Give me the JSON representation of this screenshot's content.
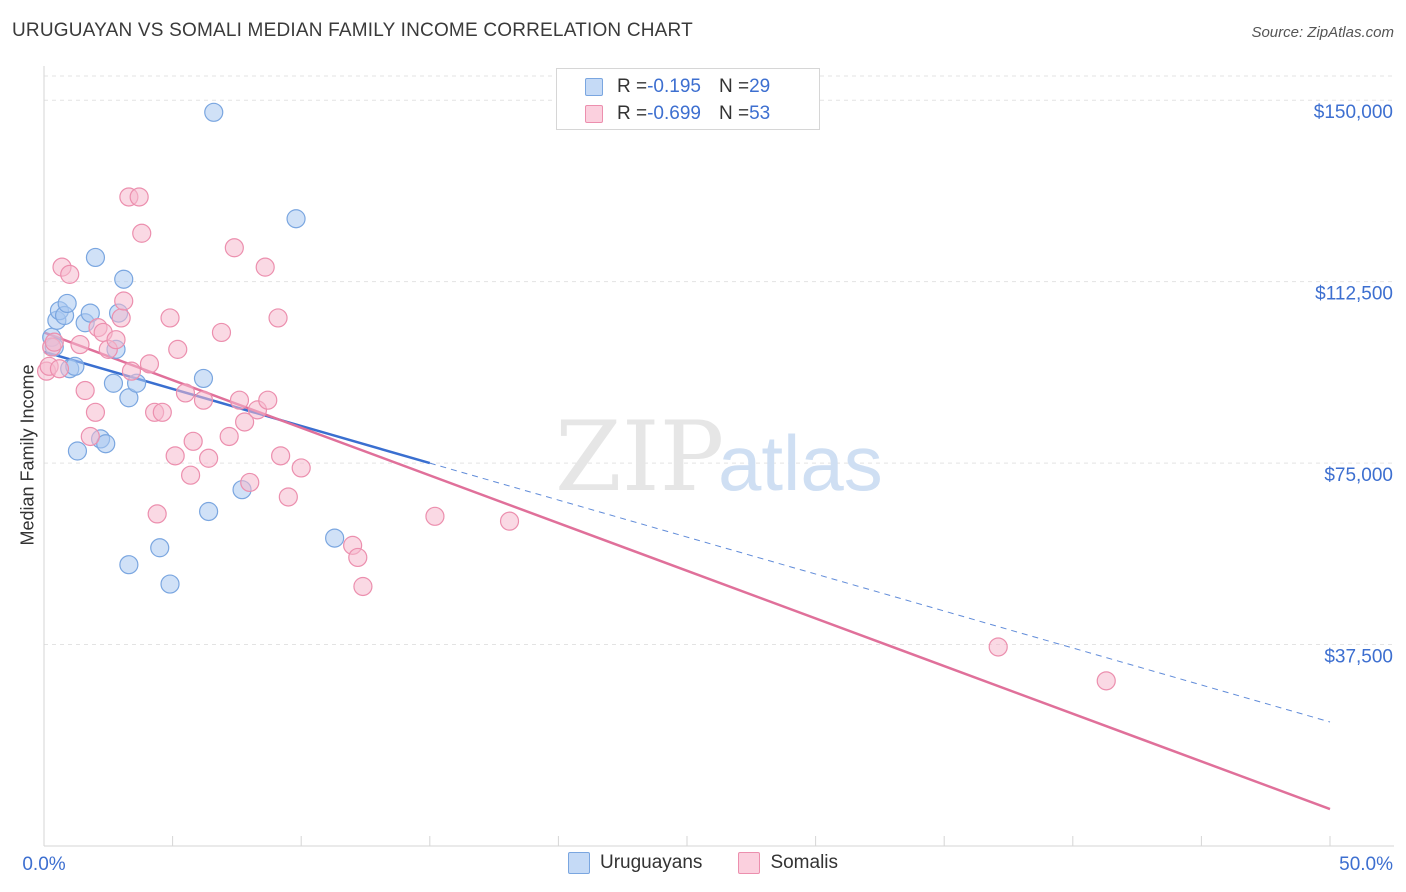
{
  "title": "URUGUAYAN VS SOMALI MEDIAN FAMILY INCOME CORRELATION CHART",
  "source": "Source: ZipAtlas.com",
  "watermark": {
    "part1": "ZIP",
    "part2": "atlas"
  },
  "legend": {
    "uruguayans": {
      "r_label": "R = ",
      "r_value": "-0.195",
      "n_label": "N = ",
      "n_value": "29"
    },
    "somalis": {
      "r_label": "R = ",
      "r_value": "-0.699",
      "n_label": "N = ",
      "n_value": "53"
    }
  },
  "colors": {
    "blue_fill": "#a9c8f0",
    "blue_stroke": "#7aa6e0",
    "blue_line": "#3a6fd0",
    "pink_fill": "#f6b9cd",
    "pink_stroke": "#ec8fae",
    "pink_line": "#e0709a",
    "tick_label": "#3d6fd0",
    "grid": "#e3e3e3"
  },
  "chart_data": {
    "type": "scatter",
    "title": "URUGUAYAN VS SOMALI MEDIAN FAMILY INCOME CORRELATION CHART",
    "xlabel": "",
    "ylabel": "Median Family Income",
    "xlim": [
      0,
      50
    ],
    "ylim": [
      0,
      155000
    ],
    "x_tick_labels": [
      "0.0%",
      "50.0%"
    ],
    "y_ticks": [
      {
        "value": 37500,
        "label": "$37,500"
      },
      {
        "value": 75000,
        "label": "$75,000"
      },
      {
        "value": 112500,
        "label": "$112,500"
      },
      {
        "value": 150000,
        "label": "$150,000"
      }
    ],
    "series": [
      {
        "name": "Uruguayans",
        "color": "#a9c8f0",
        "points": [
          [
            0.3,
            101000
          ],
          [
            0.4,
            99000
          ],
          [
            0.5,
            104500
          ],
          [
            0.6,
            106500
          ],
          [
            0.8,
            105500
          ],
          [
            0.9,
            108000
          ],
          [
            1.0,
            94500
          ],
          [
            1.2,
            95000
          ],
          [
            1.3,
            77500
          ],
          [
            1.6,
            104000
          ],
          [
            1.8,
            106000
          ],
          [
            2.0,
            117500
          ],
          [
            2.2,
            80000
          ],
          [
            2.4,
            79000
          ],
          [
            2.8,
            98500
          ],
          [
            2.7,
            91500
          ],
          [
            2.9,
            106000
          ],
          [
            3.1,
            113000
          ],
          [
            3.3,
            88500
          ],
          [
            3.6,
            91500
          ],
          [
            3.3,
            54000
          ],
          [
            4.5,
            57500
          ],
          [
            4.9,
            50000
          ],
          [
            6.2,
            92500
          ],
          [
            6.4,
            65000
          ],
          [
            6.6,
            147500
          ],
          [
            7.7,
            69500
          ],
          [
            9.8,
            125500
          ],
          [
            11.3,
            59500
          ]
        ]
      },
      {
        "name": "Somalis",
        "color": "#f6b9cd",
        "points": [
          [
            0.1,
            94000
          ],
          [
            0.2,
            95000
          ],
          [
            0.3,
            99000
          ],
          [
            0.4,
            100000
          ],
          [
            0.6,
            94500
          ],
          [
            0.7,
            115500
          ],
          [
            1.0,
            114000
          ],
          [
            1.4,
            99500
          ],
          [
            1.6,
            90000
          ],
          [
            1.8,
            80500
          ],
          [
            2.0,
            85500
          ],
          [
            2.1,
            103000
          ],
          [
            2.3,
            102000
          ],
          [
            2.5,
            98500
          ],
          [
            2.8,
            100500
          ],
          [
            3.0,
            105000
          ],
          [
            3.1,
            108500
          ],
          [
            3.3,
            130000
          ],
          [
            3.4,
            94000
          ],
          [
            3.7,
            130000
          ],
          [
            3.8,
            122500
          ],
          [
            4.1,
            95500
          ],
          [
            4.3,
            85500
          ],
          [
            4.4,
            64500
          ],
          [
            4.6,
            85500
          ],
          [
            4.9,
            105000
          ],
          [
            5.1,
            76500
          ],
          [
            5.2,
            98500
          ],
          [
            5.5,
            89500
          ],
          [
            5.7,
            72500
          ],
          [
            5.8,
            79500
          ],
          [
            6.2,
            88000
          ],
          [
            6.4,
            76000
          ],
          [
            6.9,
            102000
          ],
          [
            7.2,
            80500
          ],
          [
            7.4,
            119500
          ],
          [
            7.6,
            88000
          ],
          [
            7.8,
            83500
          ],
          [
            8.0,
            71000
          ],
          [
            8.3,
            86000
          ],
          [
            8.6,
            115500
          ],
          [
            8.7,
            88000
          ],
          [
            9.1,
            105000
          ],
          [
            9.2,
            76500
          ],
          [
            9.5,
            68000
          ],
          [
            10.0,
            74000
          ],
          [
            12.0,
            58000
          ],
          [
            12.2,
            55500
          ],
          [
            12.4,
            49500
          ],
          [
            15.2,
            64000
          ],
          [
            18.1,
            63000
          ],
          [
            37.1,
            37000
          ],
          [
            41.3,
            30000
          ]
        ]
      }
    ],
    "trend_lines": [
      {
        "series": "Uruguayans",
        "solid": [
          [
            0,
            98000
          ],
          [
            15,
            75000
          ]
        ],
        "dashed": [
          [
            15,
            75000
          ],
          [
            50,
            21500
          ]
        ]
      },
      {
        "series": "Somalis",
        "solid": [
          [
            0,
            102000
          ],
          [
            50,
            3500
          ]
        ]
      }
    ]
  }
}
